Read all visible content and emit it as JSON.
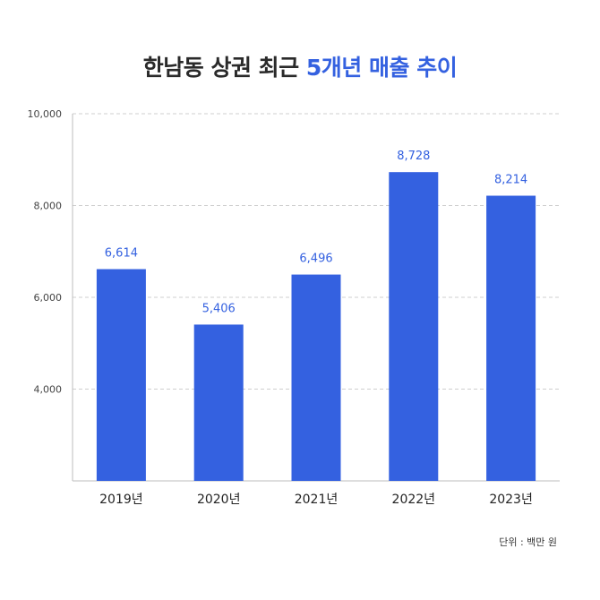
{
  "chart_data": {
    "type": "bar",
    "title_plain": "한남동 상권 최근",
    "title_highlight": "5개년 매출 추이",
    "categories": [
      "2019년",
      "2020년",
      "2021년",
      "2022년",
      "2023년"
    ],
    "values": [
      6614,
      5406,
      6496,
      8728,
      8214
    ],
    "value_labels": [
      "6,614",
      "5,406",
      "6,496",
      "8,728",
      "8,214"
    ],
    "y_ticks": [
      4000,
      6000,
      8000,
      10000
    ],
    "y_tick_labels": [
      "4,000",
      "6,000",
      "8,000",
      "10,000"
    ],
    "ylim": [
      2000,
      10000
    ],
    "grid": true,
    "unit_note": "단위 : 백만 원"
  },
  "colors": {
    "bar": "#3461e0",
    "value_label": "#3461e0",
    "grid": "#cfcfcf",
    "axis": "#bdbdbd"
  }
}
